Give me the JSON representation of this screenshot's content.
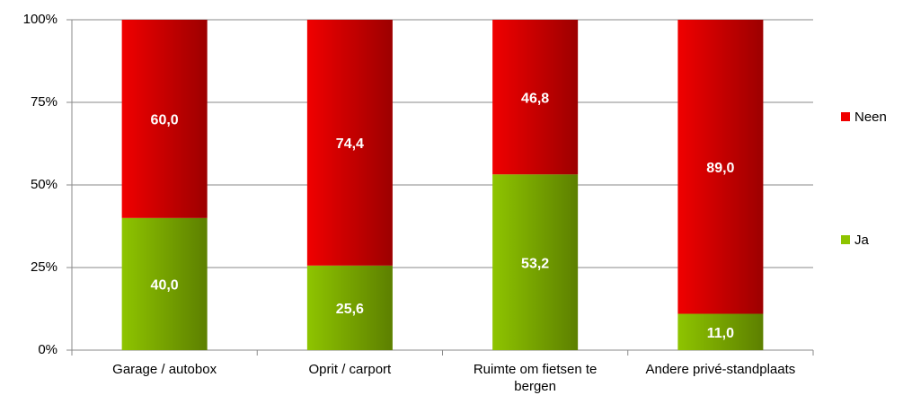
{
  "chart_data": {
    "type": "bar",
    "stacked": true,
    "categories": [
      "Garage / autobox",
      "Oprit / carport",
      "Ruimte om fietsen te bergen",
      "Andere privé-standplaats"
    ],
    "series": [
      {
        "name": "Ja",
        "color": "#8ec400",
        "values": [
          40.0,
          25.6,
          53.2,
          11.0
        ],
        "value_labels": [
          "40,0",
          "25,6",
          "53,2",
          "11,0"
        ]
      },
      {
        "name": "Neen",
        "color": "#f00000",
        "values": [
          60.0,
          74.4,
          46.8,
          89.0
        ],
        "value_labels": [
          "60,0",
          "74,4",
          "46,8",
          "89,0"
        ]
      }
    ],
    "ylim": [
      0,
      100
    ],
    "yticks": [
      {
        "value": 0,
        "label": "0%"
      },
      {
        "value": 25,
        "label": "25%"
      },
      {
        "value": 50,
        "label": "50%"
      },
      {
        "value": 75,
        "label": "75%"
      },
      {
        "value": 100,
        "label": "100%"
      }
    ],
    "grid": true,
    "legend": "right"
  }
}
